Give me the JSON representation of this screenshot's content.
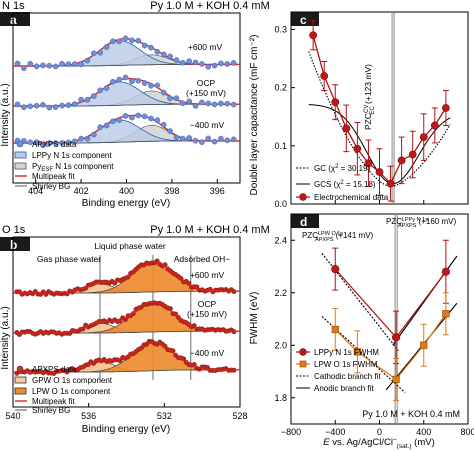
{
  "chart_data": [
    {
      "panel": "a",
      "type": "line",
      "subtitle": "N 1s",
      "title": "Py 1.0 M + KOH 0.4 mM",
      "xlabel": "Binding energy (eV)",
      "ylabel": "Intensity (a.u.)",
      "xlim": [
        405,
        395
      ],
      "xticks": [
        404,
        402,
        400,
        398,
        396
      ],
      "x_reversed": true,
      "spectra_labels": [
        "+600 mV",
        "OCP",
        "(+150 mV)",
        "−400 mV"
      ],
      "legend": [
        "APXPS data",
        "LPPy N 1s component",
        "Py",
        "ESF",
        " N 1s component",
        "Multipeak fit",
        "Shirley BG"
      ],
      "peaks": [
        {
          "name": "LPPy N 1s component",
          "center": 400.3,
          "fwhm": 2.1
        },
        {
          "name": "PyESF N 1s component",
          "center": 398.9,
          "fwhm": 1.7
        }
      ],
      "spectra": [
        {
          "label": "+600 mV",
          "a1": 0.95,
          "a2": 0.38,
          "bg": 0.06
        },
        {
          "label": "OCP (+150 mV)",
          "a1": 0.9,
          "a2": 0.52,
          "bg": 0.07
        },
        {
          "label": "−400 mV",
          "a1": 0.85,
          "a2": 0.62,
          "bg": 0.08
        }
      ]
    },
    {
      "panel": "b",
      "type": "line",
      "subtitle": "O 1s",
      "title": "Py 1.0 M + KOH 0.4 mM",
      "xlabel": "Binding energy (eV)",
      "ylabel": "Intensity (a.u.)",
      "xlim": [
        540,
        528
      ],
      "xticks": [
        540,
        536,
        532,
        528
      ],
      "x_reversed": true,
      "annotations": [
        "Liquid phase water",
        "Gas phase water",
        "Adsorbed OH−"
      ],
      "spectra_labels": [
        "+600 mV",
        "OCP",
        "(+150 mV)",
        "−400 mV"
      ],
      "legend": [
        "APXPS data",
        "GPW O 1s component",
        "LPW O 1s component",
        "Multipeak fit",
        "Shirley BG"
      ],
      "peaks": [
        {
          "name": "GPW O 1s component",
          "center": 535.4,
          "fwhm": 1.8
        },
        {
          "name": "LPW O 1s component",
          "center": 532.6,
          "fwhm": 2.6
        }
      ],
      "spectra": [
        {
          "label": "+600 mV",
          "a_gpw": 0.3,
          "a_lpw": 1.0,
          "bg": 0.06
        },
        {
          "label": "OCP (+150 mV)",
          "a_gpw": 0.33,
          "a_lpw": 1.0,
          "bg": 0.06
        },
        {
          "label": "−400 mV",
          "a_gpw": 0.35,
          "a_lpw": 0.95,
          "bg": 0.07
        }
      ]
    },
    {
      "panel": "c",
      "type": "scatter",
      "ylabel": "Double layer capacitance (mF cm⁻²)",
      "xlim": [
        -800,
        800
      ],
      "ylim": [
        0.0,
        0.33
      ],
      "yticks": [
        0.0,
        0.1,
        0.2,
        0.3
      ],
      "pzc_label": "PZC",
      "pzc_sup": "CV",
      "pzc_sub": "EC",
      "pzc_value": " (+123 mV)",
      "pzc": 123,
      "series": [
        {
          "name": "Electrochemical data",
          "x": [
            -600,
            -500,
            -400,
            -300,
            -200,
            -100,
            0,
            100,
            200,
            300,
            400,
            500,
            600
          ],
          "y": [
            0.29,
            0.22,
            0.175,
            0.13,
            0.095,
            0.07,
            0.055,
            0.035,
            0.075,
            0.085,
            0.115,
            0.135,
            0.165
          ],
          "err": [
            0.025,
            0.025,
            0.03,
            0.04,
            0.045,
            0.04,
            0.04,
            0.03,
            0.04,
            0.04,
            0.04,
            0.03,
            0.03
          ]
        },
        {
          "name": "GC",
          "fit": "chi2 = 30.19"
        },
        {
          "name": "GCS",
          "fit": "chi2 = 15.18"
        }
      ],
      "legend": [
        "GC (χ",
        "2",
        " = 30.19)",
        "GCS (χ",
        "2",
        " = 15.18)",
        "Electrochemical data"
      ]
    },
    {
      "panel": "d",
      "type": "scatter",
      "xlabel_e": "E",
      "xlabel": " vs. Ag/AgCl/Cl",
      "xlabel_sup": "−",
      "xlabel_sub": "(sat.)",
      "xlabel_unit": " (mV)",
      "ylabel": "FWHM (eV)",
      "xlim": [
        -800,
        800
      ],
      "ylim": [
        1.7,
        2.5
      ],
      "xticks": [
        -800,
        -400,
        0,
        400,
        800
      ],
      "yticks": [
        1.8,
        2.0,
        2.2,
        2.4
      ],
      "pzc_o_label": "PZC",
      "pzc_o_sup": "LPW O 1s",
      "pzc_o_sub": "APXPS",
      "pzc_o_value": " (+141 mV)",
      "pzc_n_label": "PZC",
      "pzc_n_sup": "LPPy N 1s",
      "pzc_n_sub": "APXPS",
      "pzc_n_value": " (+160 mV)",
      "pzc_o": 141,
      "pzc_n": 160,
      "footer": "Py 1.0 M + KOH 0.4 mM",
      "series": [
        {
          "name": "LPPy N 1s FWHM",
          "x": [
            -400,
            150,
            600
          ],
          "y": [
            2.29,
            2.03,
            2.28
          ],
          "err": [
            0.08,
            0.1,
            0.12
          ]
        },
        {
          "name": "LPW O 1s FWHM",
          "x": [
            -400,
            -200,
            150,
            400,
            600
          ],
          "y": [
            2.06,
            1.975,
            1.87,
            2.0,
            2.12
          ],
          "err": [
            0.08,
            0.08,
            0.08,
            0.08,
            0.08
          ]
        }
      ],
      "legend": [
        "LPPy N 1s FWHM",
        "LPW O 1s FWHM",
        "Cathodic branch fit",
        "Anodic branch fit"
      ]
    }
  ],
  "colors": {
    "data_marker": "#c0392b",
    "fit_line": "#e0211f",
    "n_peak1_fill": "#b8cbe6",
    "n_peak1_stroke": "#2a5aa8",
    "n_peak2_fill": "#d4d4d4",
    "o_gpw_fill": "#f6c99d",
    "o_lpw_fill": "#ee8b2f",
    "dot_fill": "#6d8fd6"
  }
}
